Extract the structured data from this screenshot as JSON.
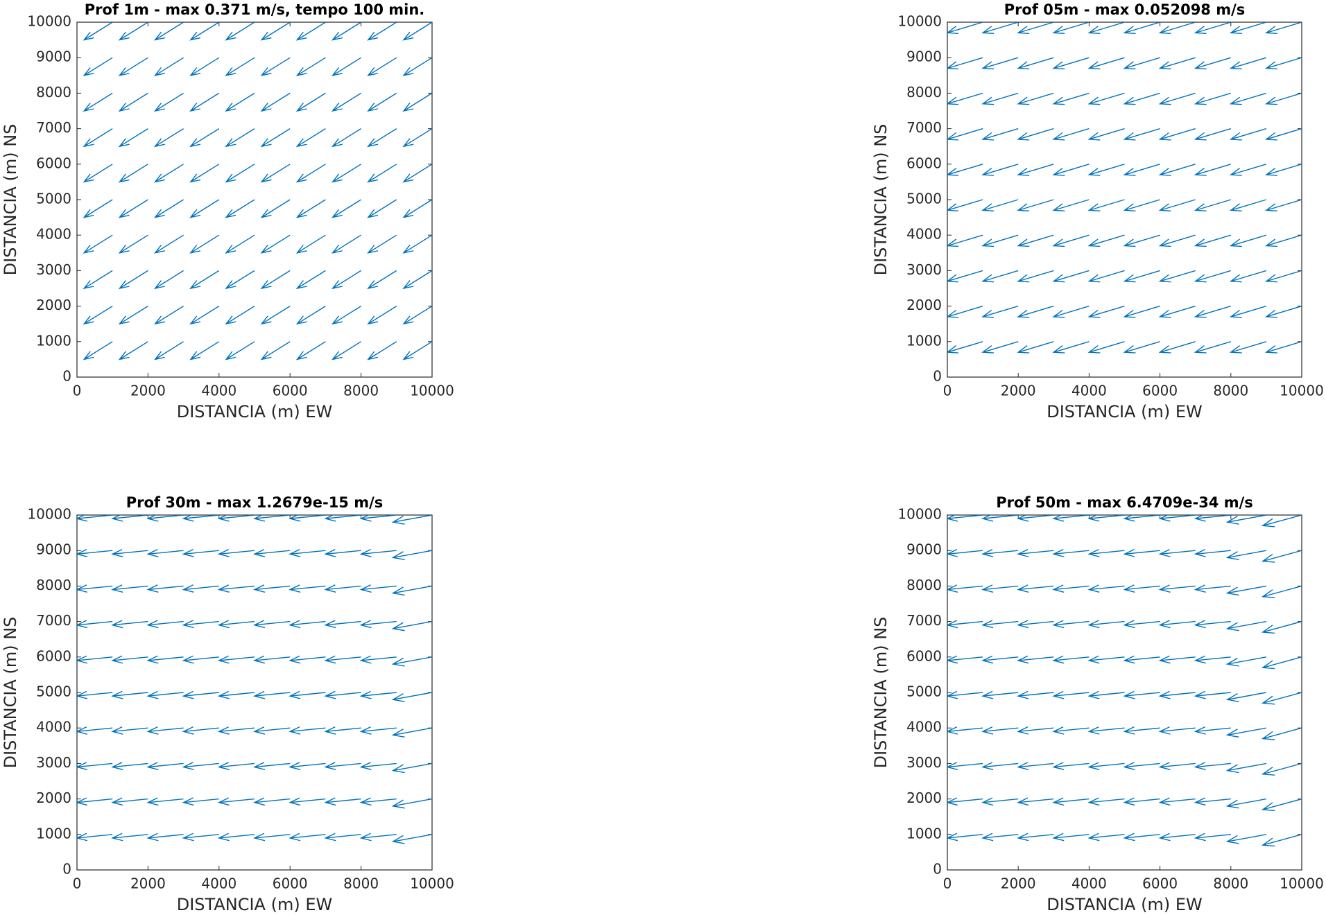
{
  "chart_data": [
    {
      "type": "quiver",
      "title": "Prof 1m - max 0.371 m/s, tempo 100 min.",
      "xlabel": "DISTANCIA (m) EW",
      "ylabel": "DISTANCIA (m) NS",
      "x": [
        1000,
        2000,
        3000,
        4000,
        5000,
        6000,
        7000,
        8000,
        9000,
        10000
      ],
      "y": [
        1000,
        2000,
        3000,
        4000,
        5000,
        6000,
        7000,
        8000,
        9000,
        10000
      ],
      "u": [
        -800,
        -800,
        -800,
        -800,
        -800,
        -800,
        -800,
        -800,
        -800,
        -800
      ],
      "v": [
        -500,
        -500,
        -500,
        -500,
        -500,
        -500,
        -500,
        -500,
        -500,
        -500
      ],
      "color": "#0072bd",
      "xlim": [
        0,
        10000
      ],
      "ylim": [
        0,
        10000
      ],
      "xticks": [
        0,
        2000,
        4000,
        6000,
        8000,
        10000
      ],
      "yticks": [
        0,
        1000,
        2000,
        3000,
        4000,
        5000,
        6000,
        7000,
        8000,
        9000,
        10000
      ]
    },
    {
      "type": "quiver",
      "title": "Prof 05m - max 0.052098 m/s",
      "xlabel": "DISTANCIA (m) EW",
      "ylabel": "DISTANCIA (m) NS",
      "x": [
        1000,
        2000,
        3000,
        4000,
        5000,
        6000,
        7000,
        8000,
        9000,
        10000
      ],
      "y": [
        1000,
        2000,
        3000,
        4000,
        5000,
        6000,
        7000,
        8000,
        9000,
        10000
      ],
      "u": [
        -1000,
        -1000,
        -1000,
        -1000,
        -1000,
        -1000,
        -1000,
        -1000,
        -1000,
        -1000
      ],
      "v": [
        -300,
        -300,
        -300,
        -300,
        -300,
        -300,
        -300,
        -300,
        -300,
        -300
      ],
      "color": "#0072bd",
      "xlim": [
        0,
        10000
      ],
      "ylim": [
        0,
        10000
      ],
      "xticks": [
        0,
        2000,
        4000,
        6000,
        8000,
        10000
      ],
      "yticks": [
        0,
        1000,
        2000,
        3000,
        4000,
        5000,
        6000,
        7000,
        8000,
        9000,
        10000
      ]
    },
    {
      "type": "quiver",
      "title": "Prof 30m - max 1.2679e-15 m/s",
      "xlabel": "DISTANCIA (m) EW",
      "ylabel": "DISTANCIA (m) NS",
      "x": [
        1000,
        2000,
        3000,
        4000,
        5000,
        6000,
        7000,
        8000,
        9000,
        10000
      ],
      "y": [
        1000,
        2000,
        3000,
        4000,
        5000,
        6000,
        7000,
        8000,
        9000,
        10000
      ],
      "u": [
        -1000,
        -1000,
        -1000,
        -1000,
        -1000,
        -1000,
        -1000,
        -1000,
        -1000,
        -1100
      ],
      "v": [
        -100,
        -100,
        -100,
        -100,
        -100,
        -100,
        -100,
        -100,
        -100,
        -200
      ],
      "color": "#0072bd",
      "xlim": [
        0,
        10000
      ],
      "ylim": [
        0,
        10000
      ],
      "xticks": [
        0,
        2000,
        4000,
        6000,
        8000,
        10000
      ],
      "yticks": [
        0,
        1000,
        2000,
        3000,
        4000,
        5000,
        6000,
        7000,
        8000,
        9000,
        10000
      ]
    },
    {
      "type": "quiver",
      "title": "Prof 50m - max 6.4709e-34 m/s",
      "xlabel": "DISTANCIA (m) EW",
      "ylabel": "DISTANCIA (m) NS",
      "x": [
        1000,
        2000,
        3000,
        4000,
        5000,
        6000,
        7000,
        8000,
        9000,
        10000
      ],
      "y": [
        1000,
        2000,
        3000,
        4000,
        5000,
        6000,
        7000,
        8000,
        9000,
        10000
      ],
      "u": [
        -1000,
        -1000,
        -1000,
        -1000,
        -1000,
        -1000,
        -1000,
        -1000,
        -1100,
        -1100
      ],
      "v": [
        -100,
        -100,
        -100,
        -100,
        -100,
        -100,
        -100,
        -100,
        -200,
        -300
      ],
      "color": "#0072bd",
      "xlim": [
        0,
        10000
      ],
      "ylim": [
        0,
        10000
      ],
      "xticks": [
        0,
        2000,
        4000,
        6000,
        8000,
        10000
      ],
      "yticks": [
        0,
        1000,
        2000,
        3000,
        4000,
        5000,
        6000,
        7000,
        8000,
        9000,
        10000
      ]
    }
  ]
}
